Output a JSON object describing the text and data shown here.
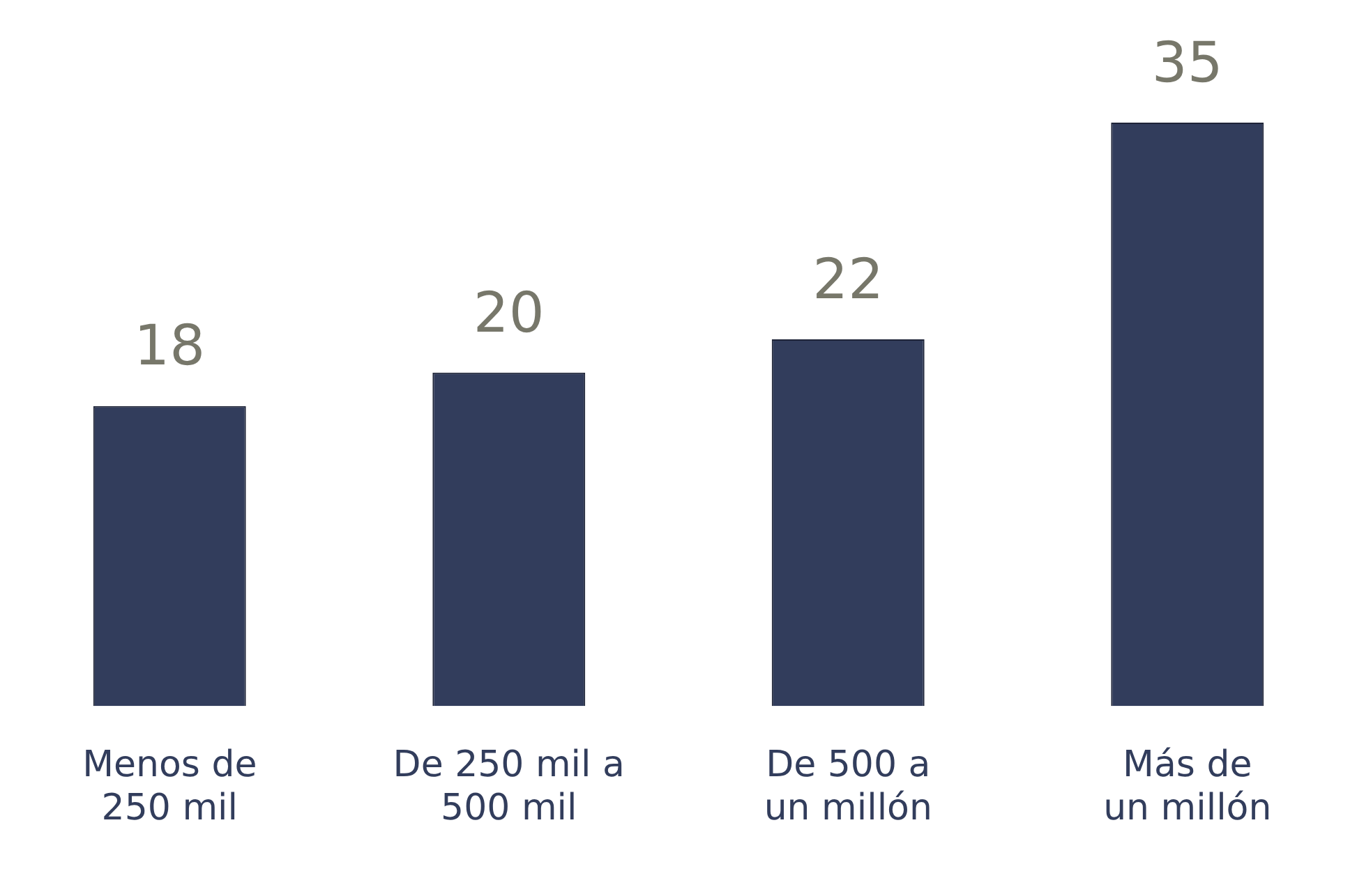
{
  "chart_data": {
    "type": "bar",
    "categories": [
      "Menos de\n250 mil",
      "De 250 mil a\n500 mil",
      "De 500 a\nun millón",
      "Más de\nun millón"
    ],
    "values": [
      18,
      20,
      22,
      35
    ],
    "color": "#323d5c",
    "data_labels": true,
    "grid": false,
    "legend": false
  }
}
